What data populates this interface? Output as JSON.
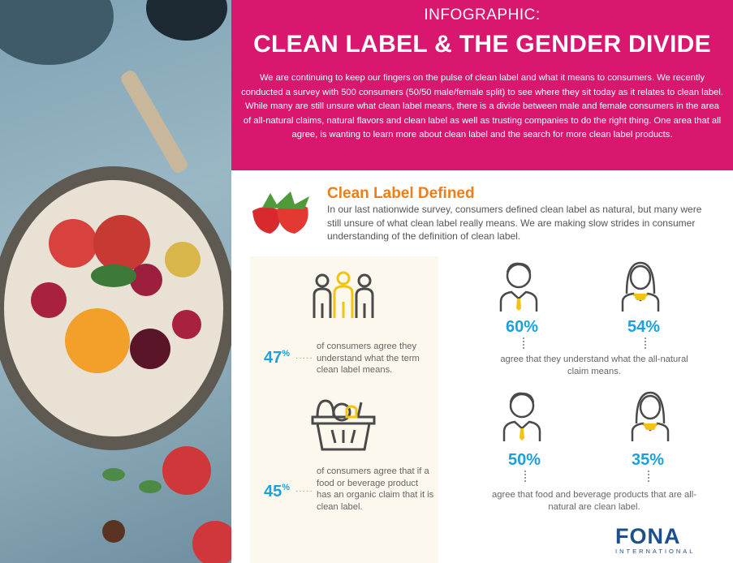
{
  "header": {
    "kicker": "INFOGRAPHIC:",
    "title": "CLEAN LABEL & THE GENDER DIVIDE",
    "body": "We are continuing to keep our fingers on the pulse of clean label and what it means to consumers. We recently conducted a survey with 500 consumers (50/50 male/female split) to see where they sit today as it relates to clean label. While many are still unsure what clean label means, there is a divide between male and female consumers in the area of all-natural claims, natural flavors and clean label as well as trusting companies to do the right thing. One area that all agree, is wanting to learn more about clean label and the search for more clean label products."
  },
  "definition": {
    "title": "Clean Label Defined",
    "body": "In our last nationwide survey, consumers defined clean label as natural, but many were still unsure of what clean label really means. We are making slow strides in consumer understanding of the definition of clean label."
  },
  "left_stats": [
    {
      "value": "47",
      "unit": "%",
      "text": "of consumers agree they understand what the term clean label means.",
      "icon": "people-group-icon"
    },
    {
      "value": "45",
      "unit": "%",
      "text": "of consumers agree that if a food or beverage product has an organic claim that it is clean label.",
      "icon": "grocery-basket-icon"
    }
  ],
  "gender_stats": [
    {
      "male": "60%",
      "female": "54%",
      "text": "agree that they understand what the all-natural claim means."
    },
    {
      "male": "50%",
      "female": "35%",
      "text": "agree that food and beverage products that are all-natural are clean label."
    }
  ],
  "logo": {
    "name": "FONA",
    "sub": "INTERNATIONAL"
  },
  "colors": {
    "header": "#d9176f",
    "accent_orange": "#ef7d1a",
    "percent_blue": "#1ba1dc",
    "panel": "#fdf8ed"
  }
}
